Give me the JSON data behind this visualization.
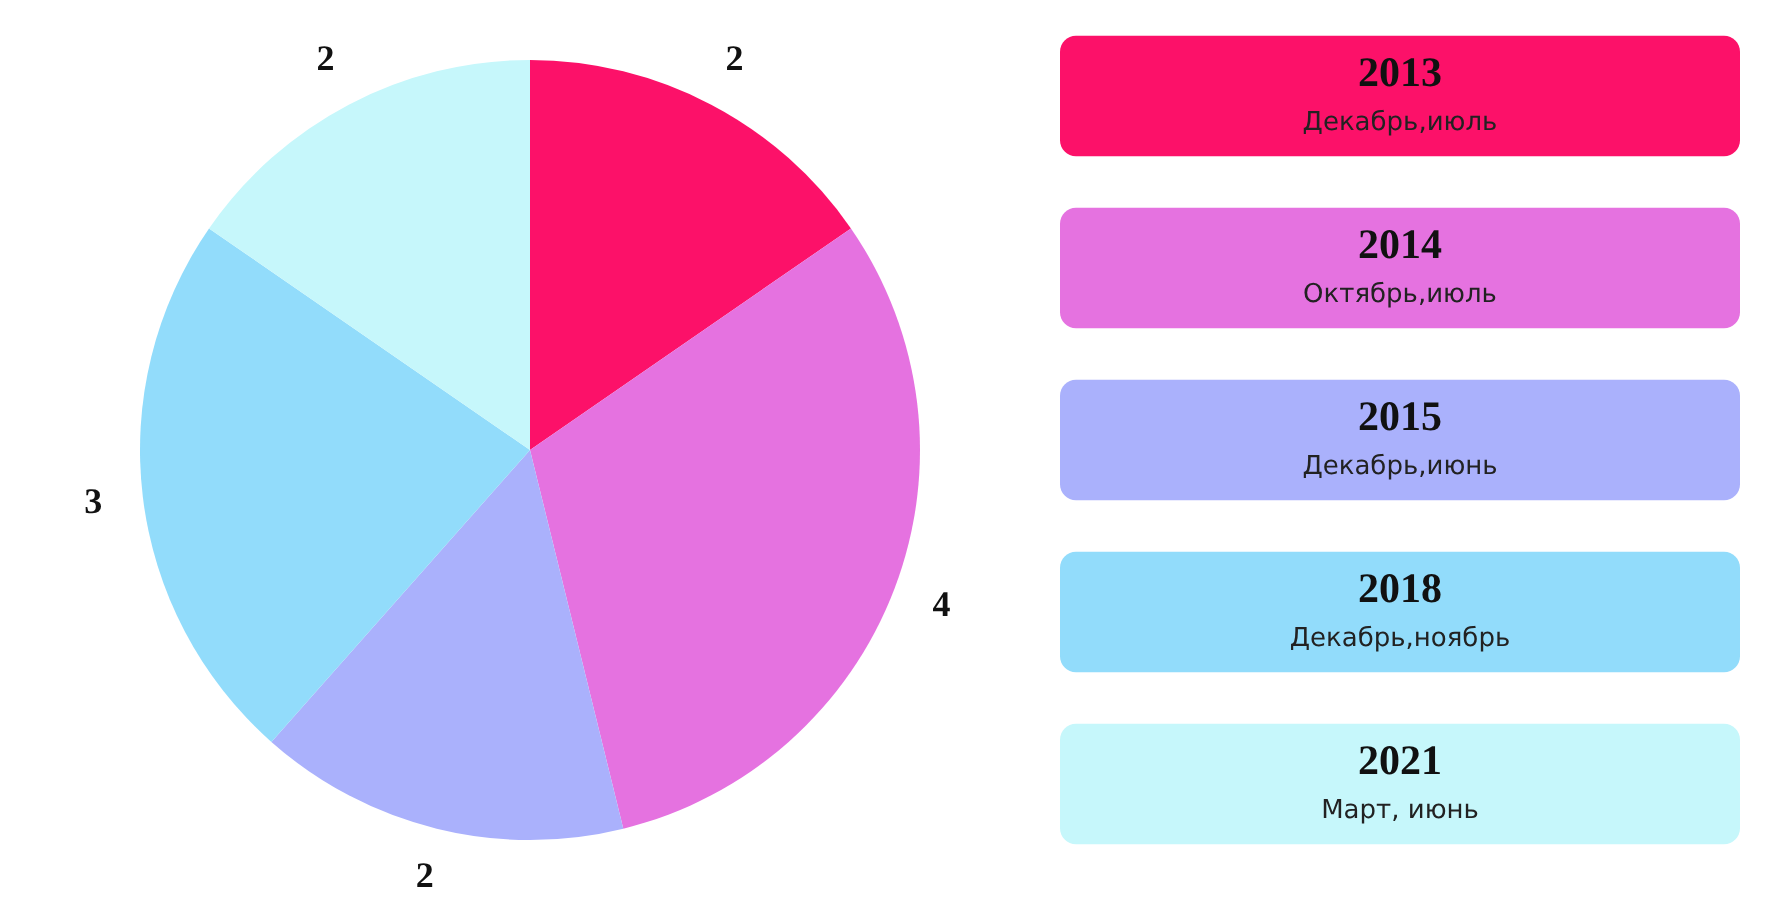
{
  "chart_data": {
    "type": "pie",
    "categories": [
      "2013\nДекабрь,июль",
      "2014\nОктябрь,июль",
      "2015\nДекабрь,июнь",
      "2018\nДекабрь,ноябрь",
      "2021\nМарт, июнь"
    ],
    "values": [
      2,
      4,
      2,
      3,
      2
    ],
    "colors": [
      "#fc1169",
      "#e572e0",
      "#aab1fc",
      "#92dcfb",
      "#c6f7fb"
    ],
    "data_labels": true
  }
}
